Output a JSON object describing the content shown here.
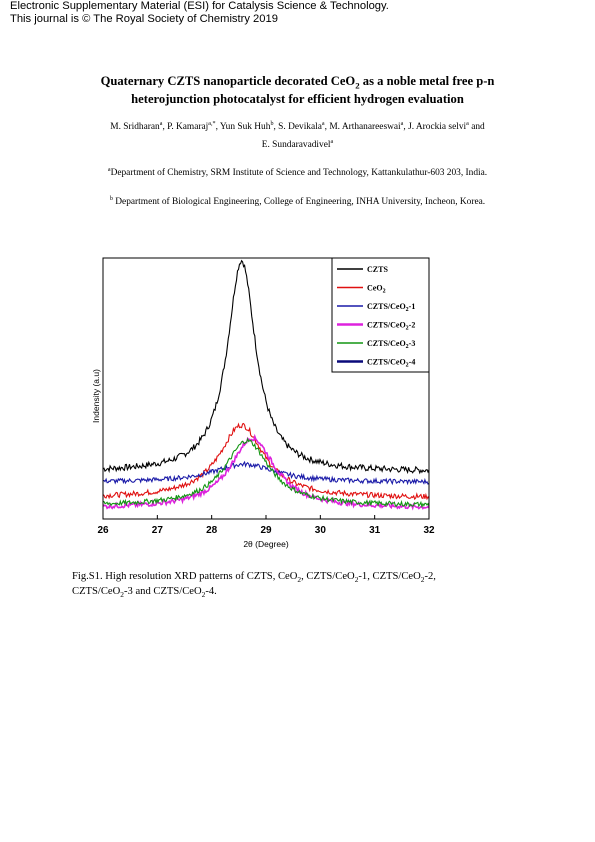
{
  "header": {
    "line1": "Electronic Supplementary Material (ESI) for Catalysis Science & Technology.",
    "line2": "This journal is © The Royal Society of Chemistry 2019"
  },
  "paper": {
    "title_a": "Quaternary CZTS nanoparticle decorated CeO",
    "title_sub": "2",
    "title_b": " as a noble metal free p-n",
    "title_line2": "heterojunction photocatalyst for efficient hydrogen evaluation",
    "authors": [
      {
        "name": "M. Sridharan",
        "aff": "a"
      },
      {
        "name": "P. Kamaraj",
        "aff": "a,*"
      },
      {
        "name": "Yun Suk Huh",
        "aff": "b"
      },
      {
        "name": "S. Devikala",
        "aff": "a"
      },
      {
        "name": "M. Arthanareeswai",
        "aff": "a"
      },
      {
        "name": "J. Arockia selvi",
        "aff": "a"
      },
      {
        "name": "E. Sundaravadivel",
        "aff": "a"
      }
    ],
    "author_sep": ", ",
    "author_and": " and",
    "affiliations": [
      {
        "mark": "a",
        "text": "Department of Chemistry, SRM Institute of Science and Technology, Kattankulathur-603 203, India."
      },
      {
        "mark": "b",
        "text": " Department of Biological Engineering, College of Engineering, INHA University, Incheon, Korea."
      }
    ],
    "caption_a": "Fig.S1. High resolution XRD patterns of CZTS, CeO",
    "caption_s1": "2",
    "caption_b": ", CZTS/CeO",
    "caption_s2": "2",
    "caption_c": "-1, CZTS/CeO",
    "caption_s3": "2",
    "caption_d": "-2,",
    "caption_e": "CZTS/CeO",
    "caption_s4": "2",
    "caption_f": "-3 and CZTS/CeO",
    "caption_s5": "2",
    "caption_g": "-4."
  },
  "chart_data": {
    "type": "line",
    "xlabel": "2θ (Degree)",
    "ylabel": "Indensity (a.u)",
    "xlim": [
      26,
      32
    ],
    "ylim": [
      0,
      100
    ],
    "xticks": [
      26,
      27,
      28,
      29,
      30,
      31,
      32
    ],
    "legend_position": "top-right",
    "grid": false,
    "series": [
      {
        "name": "CZTS",
        "color": "#000000",
        "peak_center": 28.55,
        "peak_height": 81,
        "peak_width": 0.32,
        "baseline": 18,
        "noise": 1.2
      },
      {
        "name": "CeO2",
        "color": "#e01010",
        "peak_center": 28.55,
        "peak_height": 28,
        "peak_width": 0.5,
        "baseline": 8,
        "noise": 1.0
      },
      {
        "name": "CZTS/CeO2-1",
        "color": "#1a1aa8",
        "peak_center": 28.6,
        "peak_height": 7,
        "peak_width": 0.7,
        "baseline": 14,
        "noise": 0.9
      },
      {
        "name": "CZTS/CeO2-2",
        "color": "#dd22dd",
        "peak_center": 28.75,
        "peak_height": 27,
        "peak_width": 0.5,
        "baseline": 4,
        "noise": 0.9
      },
      {
        "name": "CZTS/CeO2-3",
        "color": "#129612",
        "peak_center": 28.65,
        "peak_height": 25,
        "peak_width": 0.5,
        "baseline": 5,
        "noise": 0.9
      },
      {
        "name": "CZTS/CeO2-4",
        "color": "#0a0a7a",
        "peak_center": 28.6,
        "peak_height": 0,
        "peak_width": 0.6,
        "baseline": 0,
        "noise": 0
      }
    ]
  }
}
